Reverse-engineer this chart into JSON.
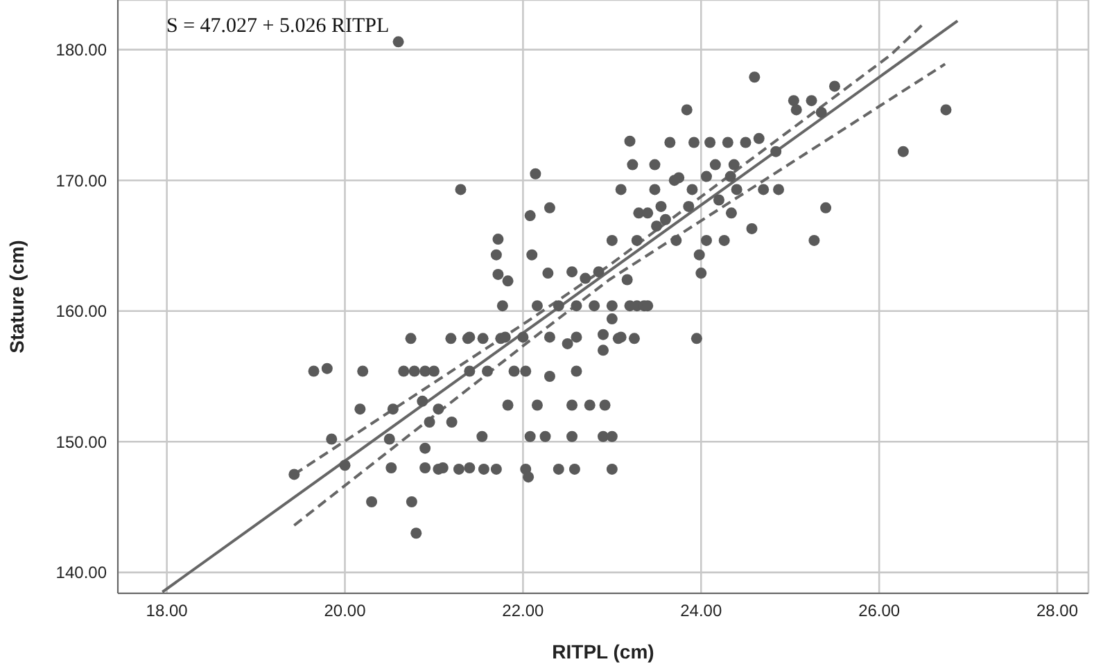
{
  "chart_data": {
    "type": "scatter",
    "xlabel": "RITPL  (cm)",
    "ylabel": "Stature  (cm)",
    "annotations": [
      "S = 47.027 + 5.026 RITPL"
    ],
    "xlim": [
      17.45,
      28.35
    ],
    "ylim": [
      138.4,
      183.8
    ],
    "xticks": [
      {
        "value": 18,
        "label": "18.00"
      },
      {
        "value": 20,
        "label": "20.00"
      },
      {
        "value": 22,
        "label": "22.00"
      },
      {
        "value": 24,
        "label": "24.00"
      },
      {
        "value": 26,
        "label": "26.00"
      },
      {
        "value": 28,
        "label": "28.00"
      }
    ],
    "yticks": [
      {
        "value": 140,
        "label": "140.00"
      },
      {
        "value": 150,
        "label": "150.00"
      },
      {
        "value": 160,
        "label": "160.00"
      },
      {
        "value": 170,
        "label": "170.00"
      },
      {
        "value": 180,
        "label": "180.00"
      }
    ],
    "grid": true,
    "series": [
      {
        "marker": "circle",
        "color": "#5a5a5a",
        "x": [
          19.43,
          19.65,
          19.8,
          19.85,
          20.0,
          20.17,
          20.2,
          20.3,
          20.5,
          20.52,
          20.54,
          20.66,
          20.74,
          20.75,
          20.8,
          20.78,
          20.87,
          20.9,
          20.9,
          20.9,
          21.0,
          21.05,
          21.1,
          21.19,
          21.2,
          21.28,
          21.3,
          21.38,
          21.4,
          21.4,
          21.4,
          21.54,
          21.55,
          21.56,
          21.6,
          21.7,
          21.72,
          21.7,
          21.72,
          21.75,
          21.77,
          21.8,
          21.83,
          21.83,
          21.9,
          22.0,
          22.03,
          22.03,
          22.06,
          22.08,
          22.08,
          22.1,
          22.14,
          22.16,
          22.16,
          22.25,
          22.28,
          22.3,
          22.3,
          22.4,
          22.4,
          22.55,
          22.55,
          22.58,
          22.6,
          22.6,
          22.6,
          22.55,
          22.75,
          22.8,
          22.9,
          22.9,
          22.92,
          22.9,
          23.0,
          23.0,
          23.0,
          23.0,
          23.0,
          23.07,
          23.1,
          23.1,
          23.17,
          23.2,
          23.2,
          23.23,
          23.25,
          23.28,
          23.28,
          23.36,
          23.4,
          23.48,
          23.48,
          23.55,
          23.65,
          23.72,
          23.75,
          23.84,
          23.86,
          23.9,
          23.92,
          23.95,
          23.98,
          24.0,
          24.06,
          24.06,
          24.1,
          24.16,
          24.26,
          24.3,
          24.33,
          24.34,
          24.37,
          24.4,
          24.5,
          24.57,
          24.6,
          24.65,
          24.7,
          24.84,
          24.87,
          25.04,
          25.07,
          25.24,
          25.27,
          25.35,
          25.4,
          25.5,
          26.27,
          26.75,
          20.6,
          23.3,
          23.4,
          23.6,
          23.5,
          22.7,
          22.85,
          21.05,
          20.95,
          22.5,
          22.3,
          23.7,
          24.2
        ],
        "values": [
          147.5,
          155.4,
          155.6,
          150.2,
          148.2,
          152.5,
          155.4,
          145.4,
          150.2,
          148,
          152.5,
          155.4,
          157.9,
          145.4,
          143,
          155.4,
          153.1,
          155.4,
          149.5,
          148,
          155.4,
          147.9,
          148,
          157.9,
          151.5,
          147.9,
          169.3,
          157.9,
          158,
          155.4,
          148,
          150.4,
          157.9,
          147.9,
          155.4,
          147.9,
          165.5,
          164.3,
          162.8,
          157.9,
          160.4,
          158,
          162.3,
          152.8,
          155.4,
          158,
          155.4,
          147.9,
          147.3,
          167.3,
          150.4,
          164.3,
          170.5,
          160.4,
          152.8,
          150.4,
          162.9,
          167.9,
          158,
          160.4,
          147.9,
          163,
          150.4,
          147.9,
          160.4,
          155.4,
          158,
          152.8,
          152.8,
          160.4,
          158.2,
          157,
          152.8,
          150.4,
          150.4,
          147.9,
          160.4,
          165.4,
          159.4,
          157.9,
          169.3,
          158,
          162.4,
          173,
          160.4,
          171.2,
          157.9,
          165.4,
          160.4,
          160.4,
          160.4,
          171.2,
          169.3,
          168,
          172.9,
          165.4,
          170.2,
          175.4,
          168,
          169.3,
          172.9,
          157.9,
          164.3,
          162.9,
          170.3,
          165.4,
          172.9,
          171.2,
          165.4,
          172.9,
          170.3,
          167.5,
          171.2,
          169.3,
          172.9,
          166.3,
          177.9,
          173.2,
          169.3,
          172.2,
          169.3,
          176.1,
          175.4,
          176.1,
          165.4,
          175.2,
          167.9,
          177.2,
          172.2,
          175.4,
          180.6,
          167.5,
          167.5,
          167,
          166.5,
          162.5,
          163,
          152.5,
          151.5,
          157.5,
          155,
          170,
          168.5
        ]
      },
      {
        "type": "line",
        "color": "#666666",
        "line_style": "solid",
        "x": [
          17.95,
          26.88
        ],
        "values": [
          138.5,
          182.2
        ]
      },
      {
        "type": "line",
        "color": "#666666",
        "line_style": "dashed",
        "x": [
          19.43,
          22.07,
          22.97,
          26.13,
          26.5
        ],
        "values": [
          147.5,
          159.3,
          163.5,
          179.6,
          182
        ]
      },
      {
        "type": "line",
        "color": "#666666",
        "line_style": "dashed",
        "x": [
          19.43,
          22.07,
          22.97,
          26.74
        ],
        "values": [
          143.6,
          157.7,
          162.4,
          178.9
        ]
      }
    ]
  }
}
